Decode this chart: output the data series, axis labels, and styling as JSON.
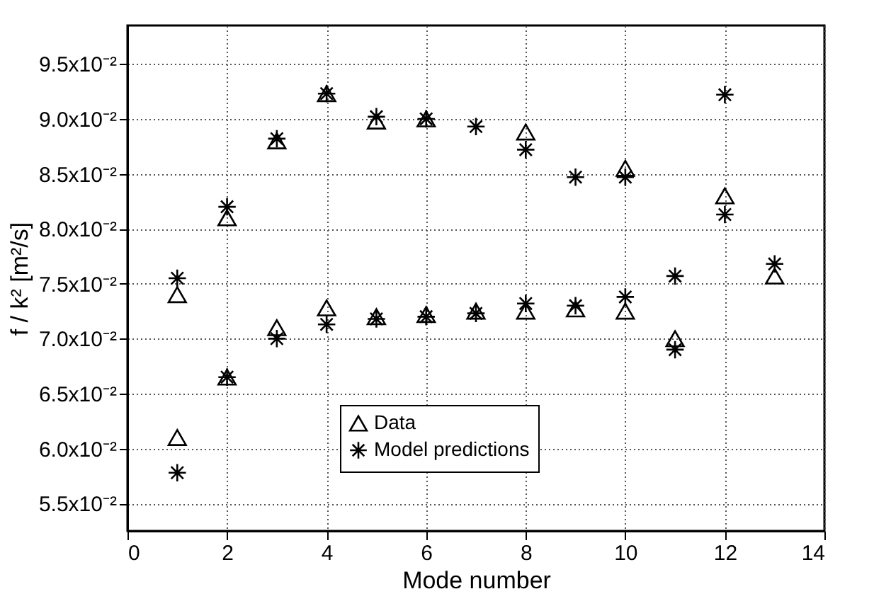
{
  "chart_data": {
    "type": "scatter",
    "xlabel": "Mode number",
    "ylabel": "f / k² [m²/s]",
    "xlim": [
      0,
      14
    ],
    "xticks": [
      0,
      2,
      4,
      6,
      8,
      10,
      12,
      14
    ],
    "ylim": [
      0.0525,
      0.0985
    ],
    "yticks": [
      {
        "value": 0.055,
        "label": "5.5x10⁻²"
      },
      {
        "value": 0.06,
        "label": "6.0x10⁻²"
      },
      {
        "value": 0.065,
        "label": "6.5x10⁻²"
      },
      {
        "value": 0.07,
        "label": "7.0x10⁻²"
      },
      {
        "value": 0.075,
        "label": "7.5x10⁻²"
      },
      {
        "value": 0.08,
        "label": "8.0x10⁻²"
      },
      {
        "value": 0.085,
        "label": "8.5x10⁻²"
      },
      {
        "value": 0.09,
        "label": "9.0x10⁻²"
      },
      {
        "value": 0.095,
        "label": "9.5x10⁻²"
      }
    ],
    "grid": true,
    "legend": "bottom left",
    "series": [
      {
        "name": "Data",
        "color": "#000000",
        "marker": "triangle",
        "x": [
          1,
          1,
          2,
          2,
          3,
          3,
          4,
          4,
          5,
          5,
          6,
          6,
          7,
          8,
          8,
          9,
          10,
          10,
          11,
          12,
          13
        ],
        "values": [
          0.074,
          0.061,
          0.081,
          0.0665,
          0.088,
          0.071,
          0.0923,
          0.0728,
          0.0898,
          0.072,
          0.09,
          0.0722,
          0.0725,
          0.0888,
          0.0725,
          0.0727,
          0.0855,
          0.0725,
          0.07,
          0.083,
          0.0757
        ]
      },
      {
        "name": "Model predictions",
        "color": "#000000",
        "marker": "cross",
        "x": [
          1,
          1,
          2,
          2,
          3,
          3,
          4,
          4,
          5,
          5,
          6,
          6,
          7,
          7,
          8,
          8,
          9,
          9,
          10,
          10,
          11,
          11,
          12,
          12,
          13
        ],
        "values": [
          0.0755,
          0.0578,
          0.082,
          0.0665,
          0.0882,
          0.07,
          0.0923,
          0.0713,
          0.0902,
          0.0718,
          0.09,
          0.072,
          0.0893,
          0.0723,
          0.0872,
          0.0732,
          0.0847,
          0.073,
          0.0847,
          0.0738,
          0.0757,
          0.069,
          0.0922,
          0.0813,
          0.0768
        ]
      }
    ]
  }
}
